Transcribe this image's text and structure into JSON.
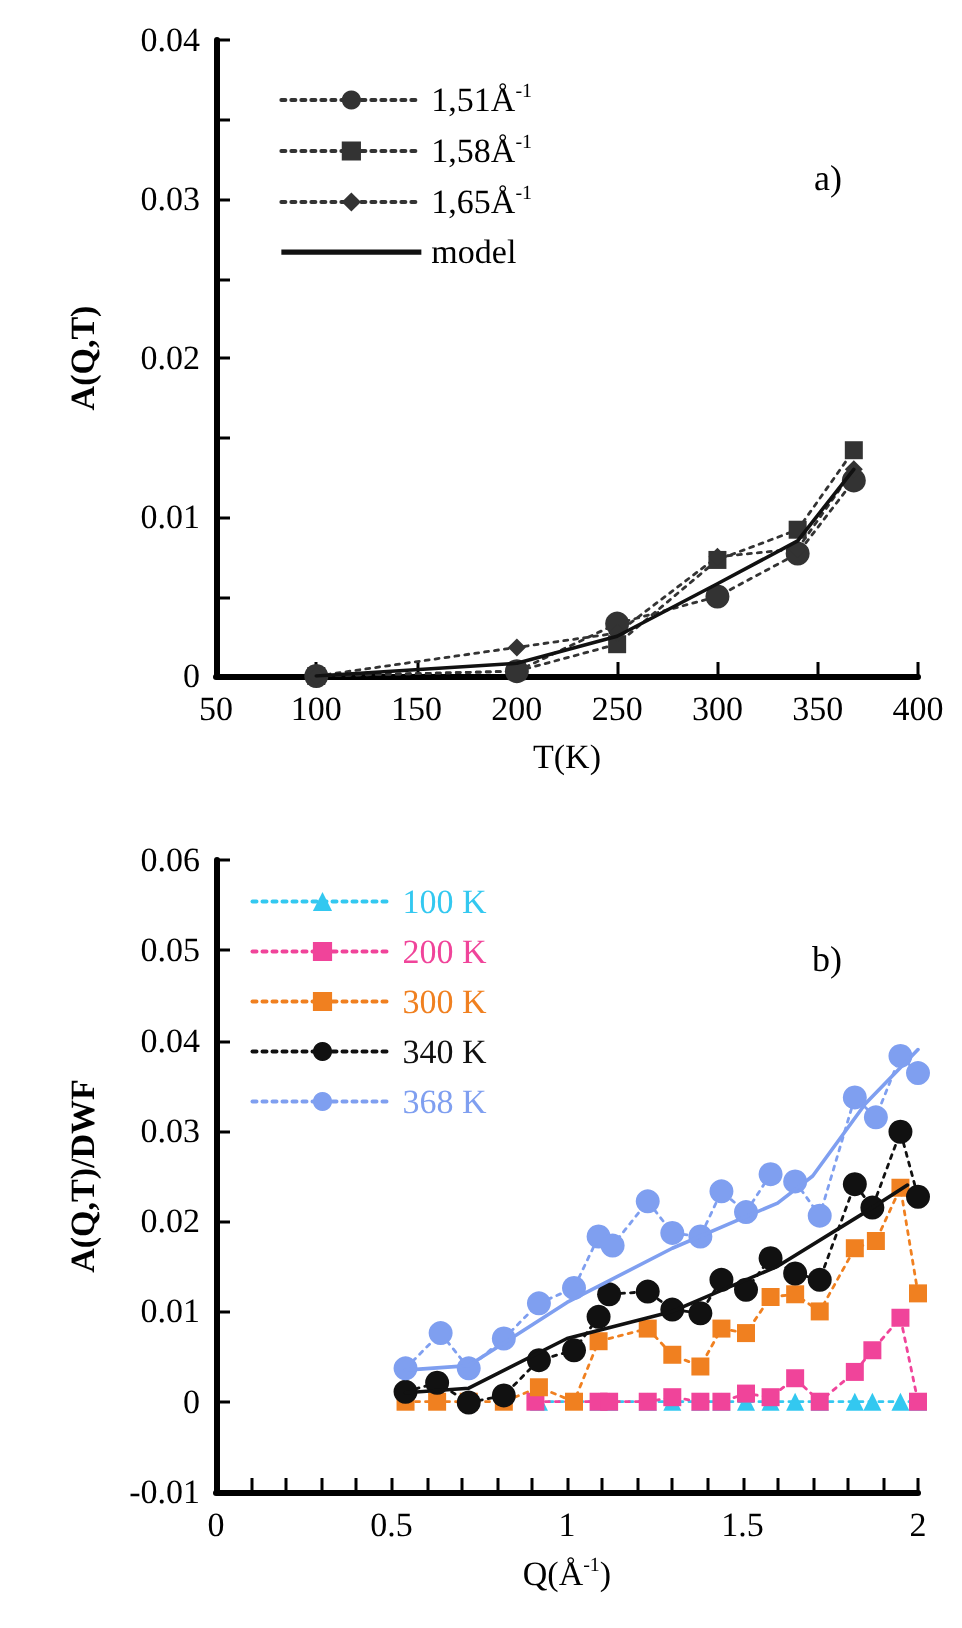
{
  "chart_data": [
    {
      "type": "line",
      "xlabel": "T(K)",
      "ylabel": "A(Q,T)",
      "annotations": [
        "a)"
      ],
      "x": [
        100,
        200,
        250,
        300,
        340,
        368
      ],
      "series": [
        {
          "name": "1,51Å$^{-1}$",
          "color": "#333333",
          "marker": "circle",
          "line_style": "dotted",
          "values": [
            0,
            0.0003,
            0.0033,
            0.005,
            0.0077,
            0.0123
          ]
        },
        {
          "name": "1,58Å$^{-1}$",
          "color": "#333333",
          "marker": "square",
          "line_style": "dotted",
          "values": [
            0,
            0.0003,
            0.002,
            0.0073,
            0.0092,
            0.0142
          ]
        },
        {
          "name": "1,65Å$^{-1}$",
          "color": "#333333",
          "marker": "diamond",
          "line_style": "dotted",
          "values": [
            0,
            0.0018,
            0.0027,
            0.0075,
            0.008,
            0.013
          ]
        },
        {
          "name": "model",
          "color": "#111111",
          "marker": "none",
          "line_style": "solid",
          "values": [
            0,
            0.0008,
            0.0025,
            0.0058,
            0.0085,
            0.013
          ]
        }
      ],
      "xlim": [
        50,
        400
      ],
      "xticks": [
        50,
        100,
        150,
        200,
        250,
        300,
        350,
        400
      ],
      "ylim": [
        0,
        0.04
      ],
      "yticks": [
        0,
        {
          "value": 0.005,
          "label": null
        },
        0.01,
        {
          "value": 0.015,
          "label": null
        },
        0.02,
        {
          "value": 0.025,
          "label": null
        },
        0.03,
        {
          "value": 0.035,
          "label": null
        },
        0.04
      ],
      "grid": false,
      "legend": "top"
    },
    {
      "type": "line",
      "xlabel": "Q(Å$^{-1}$)",
      "ylabel": "A(Q,T)/DWF",
      "annotations": [
        "b)"
      ],
      "series": [
        {
          "name": "100 K",
          "color": "#33c8f0",
          "marker": "triangle",
          "line_style": "dotted",
          "x": [
            0.92,
            1.09,
            1.12,
            1.23,
            1.3,
            1.38,
            1.44,
            1.51,
            1.58,
            1.65,
            1.72,
            1.82,
            1.87,
            1.95,
            2.0
          ],
          "values": [
            0,
            0,
            0,
            0,
            0,
            0,
            0,
            0,
            0,
            0,
            0,
            0,
            0,
            0,
            0
          ]
        },
        {
          "name": "200 K",
          "color": "#f0449a",
          "marker": "square",
          "line_style": "dotted",
          "x": [
            0.91,
            1.09,
            1.12,
            1.23,
            1.3,
            1.38,
            1.44,
            1.51,
            1.58,
            1.65,
            1.72,
            1.82,
            1.87,
            1.95,
            2.0
          ],
          "values": [
            0,
            0,
            0,
            0,
            0.0005,
            0,
            0,
            0.0009,
            0.0005,
            0.0026,
            0,
            0.0033,
            0.0057,
            0.0093,
            0
          ]
        },
        {
          "name": "300 K",
          "color": "#f08020",
          "marker": "square",
          "line_style": "dotted",
          "x": [
            0.54,
            0.63,
            0.72,
            0.82,
            0.92,
            1.02,
            1.09,
            1.23,
            1.3,
            1.38,
            1.44,
            1.51,
            1.58,
            1.65,
            1.72,
            1.82,
            1.88,
            1.95,
            2.0
          ],
          "values": [
            0,
            0,
            0,
            0,
            0.0016,
            0,
            0.0067,
            0.0081,
            0.0052,
            0.0039,
            0.0081,
            0.0076,
            0.0116,
            0.0119,
            0.01,
            0.017,
            0.0178,
            0.0237,
            0.012
          ]
        },
        {
          "name": "340 K",
          "color": "#111111",
          "marker": "circle",
          "line_style": "dotted",
          "x": [
            0.54,
            0.63,
            0.72,
            0.82,
            0.92,
            1.02,
            1.09,
            1.12,
            1.23,
            1.3,
            1.38,
            1.44,
            1.51,
            1.58,
            1.65,
            1.72,
            1.82,
            1.87,
            1.95,
            2.0
          ],
          "values": [
            0.0011,
            0.0021,
            -0.0001,
            0.0007,
            0.0046,
            0.0057,
            0.0094,
            0.0119,
            0.0122,
            0.0102,
            0.0098,
            0.0135,
            0.0124,
            0.0159,
            0.0142,
            0.0135,
            0.0241,
            0.0215,
            0.0299,
            0.0227
          ]
        },
        {
          "name": "368 K",
          "color": "#7f9ff0",
          "marker": "circle",
          "line_style": "dotted",
          "x": [
            0.54,
            0.64,
            0.72,
            0.82,
            0.92,
            1.02,
            1.09,
            1.13,
            1.23,
            1.3,
            1.38,
            1.44,
            1.51,
            1.58,
            1.65,
            1.72,
            1.82,
            1.88,
            1.95,
            2.0
          ],
          "values": [
            0.0037,
            0.0076,
            0.0037,
            0.007,
            0.0109,
            0.0126,
            0.0183,
            0.0173,
            0.0222,
            0.0187,
            0.0183,
            0.0233,
            0.021,
            0.0252,
            0.0244,
            0.0206,
            0.0337,
            0.0315,
            0.0383,
            0.0364
          ]
        },
        {
          "color": "#111111",
          "marker": "none",
          "line_style": "solid",
          "x": [
            0.54,
            0.72,
            1.0,
            1.3,
            1.6,
            1.85,
            1.97
          ],
          "values": [
            0.001,
            0.0015,
            0.007,
            0.01,
            0.015,
            0.021,
            0.024
          ]
        },
        {
          "color": "#7f9ff0",
          "marker": "none",
          "line_style": "solid",
          "x": [
            0.54,
            0.72,
            1.0,
            1.3,
            1.6,
            1.7,
            1.85,
            2.0
          ],
          "values": [
            0.0035,
            0.004,
            0.011,
            0.017,
            0.022,
            0.025,
            0.033,
            0.039
          ]
        }
      ],
      "xlim": [
        0,
        2
      ],
      "xticks": [
        0,
        {
          "value": 0.1,
          "label": null
        },
        {
          "value": 0.2,
          "label": null
        },
        {
          "value": 0.3,
          "label": null
        },
        {
          "value": 0.4,
          "label": null
        },
        0.5,
        {
          "value": 0.6,
          "label": null
        },
        {
          "value": 0.7,
          "label": null
        },
        {
          "value": 0.8,
          "label": null
        },
        {
          "value": 0.9,
          "label": null
        },
        1,
        {
          "value": 1.1,
          "label": null
        },
        {
          "value": 1.2,
          "label": null
        },
        {
          "value": 1.3,
          "label": null
        },
        {
          "value": 1.4,
          "label": null
        },
        1.5,
        {
          "value": 1.6,
          "label": null
        },
        {
          "value": 1.7,
          "label": null
        },
        {
          "value": 1.8,
          "label": null
        },
        {
          "value": 1.9,
          "label": null
        },
        2
      ],
      "ylim": [
        -0.01,
        0.06
      ],
      "yticks": [
        -0.01,
        0,
        0.01,
        0.02,
        0.03,
        0.04,
        0.05,
        0.06
      ],
      "grid": false,
      "legend": "top left"
    }
  ]
}
